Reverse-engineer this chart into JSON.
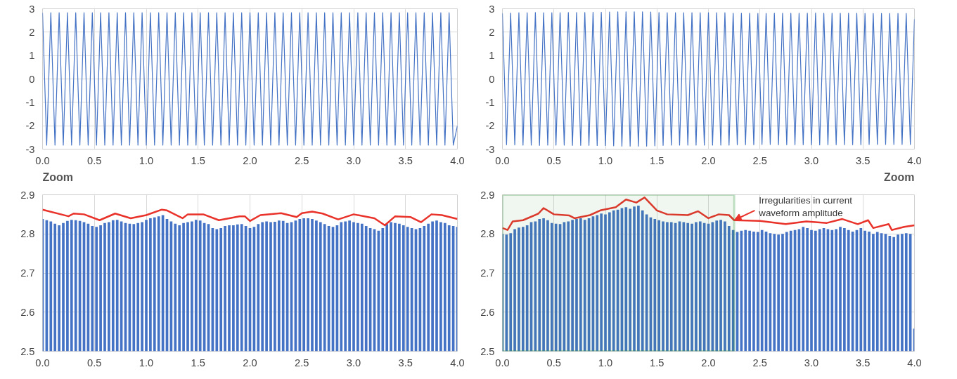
{
  "chart_data": [
    {
      "type": "line",
      "x": [
        0,
        0.04,
        0.08,
        0.12,
        0.16,
        0.2,
        0.24,
        0.28,
        0.32,
        0.36,
        0.4,
        0.44,
        0.48,
        0.52,
        0.56,
        0.6,
        0.64,
        0.68,
        0.72,
        0.76,
        0.8,
        0.84,
        0.88,
        0.92,
        0.96,
        1.0,
        1.04,
        1.08,
        1.12,
        1.16,
        1.2,
        1.24,
        1.28,
        1.32,
        1.36,
        1.4,
        1.44,
        1.48,
        1.52,
        1.56,
        1.6,
        1.64,
        1.68,
        1.72,
        1.76,
        1.8,
        1.84,
        1.88,
        1.92,
        1.96,
        2.0,
        2.04,
        2.08,
        2.12,
        2.16,
        2.2,
        2.24,
        2.28,
        2.32,
        2.36,
        2.4,
        2.44,
        2.48,
        2.52,
        2.56,
        2.6,
        2.64,
        2.68,
        2.72,
        2.76,
        2.8,
        2.84,
        2.88,
        2.92,
        2.96,
        3.0,
        3.04,
        3.08,
        3.12,
        3.16,
        3.2,
        3.24,
        3.28,
        3.32,
        3.36,
        3.4,
        3.44,
        3.48,
        3.52,
        3.56,
        3.6,
        3.64,
        3.68,
        3.72,
        3.76,
        3.8,
        3.84,
        3.88,
        3.92,
        3.96,
        4.0
      ],
      "series": [
        {
          "color": "#4472c4",
          "values": [
            2.83,
            -2.83,
            2.83,
            -2.83,
            2.83,
            -2.83,
            2.83,
            -2.83,
            2.83,
            -2.83,
            2.83,
            -2.83,
            2.83,
            -2.83,
            2.83,
            -2.83,
            2.83,
            -2.83,
            2.83,
            -2.83,
            2.83,
            -2.83,
            2.83,
            -2.83,
            2.83,
            -2.83,
            2.83,
            -2.83,
            2.83,
            -2.83,
            2.83,
            -2.83,
            2.83,
            -2.83,
            2.83,
            -2.83,
            2.83,
            -2.83,
            2.83,
            -2.83,
            2.83,
            -2.83,
            2.83,
            -2.83,
            2.83,
            -2.83,
            2.83,
            -2.83,
            2.83,
            -2.83,
            2.83,
            -2.83,
            2.83,
            -2.83,
            2.83,
            -2.83,
            2.83,
            -2.83,
            2.83,
            -2.83,
            2.83,
            -2.83,
            2.83,
            -2.83,
            2.83,
            -2.83,
            2.83,
            -2.83,
            2.83,
            -2.83,
            2.83,
            -2.83,
            2.83,
            -2.83,
            2.83,
            -2.83,
            2.83,
            -2.83,
            2.83,
            -2.83,
            2.83,
            -2.83,
            2.83,
            -2.83,
            2.83,
            -2.83,
            2.83,
            -2.83,
            2.83,
            -2.83,
            2.83,
            -2.83,
            2.83,
            -2.83,
            2.83,
            -2.83,
            2.83,
            -2.83,
            2.83,
            -2.83,
            -2.0
          ]
        }
      ],
      "xlim": [
        0,
        4
      ],
      "ylim": [
        -3,
        3
      ],
      "xticks": [
        {
          "value": 0,
          "label": "0.0"
        },
        0.5,
        {
          "value": 1,
          "label": "1.0"
        },
        1.5,
        {
          "value": 2,
          "label": "2.0"
        },
        2.5,
        {
          "value": 3,
          "label": "3.0"
        },
        3.5,
        {
          "value": 4,
          "label": "4.0"
        }
      ],
      "yticks": [
        -3,
        -2,
        -1,
        0,
        1,
        2,
        3
      ],
      "grid": true,
      "annotations": [
        "Zoom"
      ]
    },
    {
      "type": "line",
      "x": [
        0,
        0.04,
        0.08,
        0.12,
        0.16,
        0.2,
        0.24,
        0.28,
        0.32,
        0.36,
        0.4,
        0.44,
        0.48,
        0.52,
        0.56,
        0.6,
        0.64,
        0.68,
        0.72,
        0.76,
        0.8,
        0.84,
        0.88,
        0.92,
        0.96,
        1.0,
        1.04,
        1.08,
        1.12,
        1.16,
        1.2,
        1.24,
        1.28,
        1.32,
        1.36,
        1.4,
        1.44,
        1.48,
        1.52,
        1.56,
        1.6,
        1.64,
        1.68,
        1.72,
        1.76,
        1.8,
        1.84,
        1.88,
        1.92,
        1.96,
        2.0,
        2.04,
        2.08,
        2.12,
        2.16,
        2.2,
        2.24,
        2.28,
        2.32,
        2.36,
        2.4,
        2.44,
        2.48,
        2.52,
        2.56,
        2.6,
        2.64,
        2.68,
        2.72,
        2.76,
        2.8,
        2.84,
        2.88,
        2.92,
        2.96,
        3.0,
        3.04,
        3.08,
        3.12,
        3.16,
        3.2,
        3.24,
        3.28,
        3.32,
        3.36,
        3.4,
        3.44,
        3.48,
        3.52,
        3.56,
        3.6,
        3.64,
        3.68,
        3.72,
        3.76,
        3.8,
        3.84,
        3.88,
        3.92,
        3.96,
        4.0
      ],
      "series": [
        {
          "color": "#4472c4",
          "values": [
            2.81,
            -2.81,
            2.82,
            -2.82,
            2.83,
            -2.83,
            2.83,
            -2.83,
            2.84,
            -2.84,
            2.83,
            -2.83,
            2.83,
            -2.83,
            2.83,
            -2.83,
            2.84,
            -2.84,
            2.84,
            -2.84,
            2.84,
            -2.84,
            2.85,
            -2.85,
            2.85,
            -2.85,
            2.86,
            -2.86,
            2.87,
            -2.87,
            2.87,
            -2.87,
            2.87,
            -2.87,
            2.87,
            -2.87,
            2.86,
            -2.86,
            2.84,
            -2.84,
            2.83,
            -2.83,
            2.83,
            -2.83,
            2.83,
            -2.83,
            2.83,
            -2.83,
            2.83,
            -2.83,
            2.83,
            -2.83,
            2.83,
            -2.83,
            2.83,
            -2.83,
            2.81,
            -2.81,
            2.81,
            -2.81,
            2.81,
            -2.81,
            2.8,
            -2.8,
            2.8,
            -2.8,
            2.81,
            -2.81,
            2.81,
            -2.81,
            2.81,
            -2.81,
            2.81,
            -2.81,
            2.81,
            -2.81,
            2.82,
            -2.82,
            2.81,
            -2.81,
            2.81,
            -2.81,
            2.81,
            -2.81,
            2.81,
            -2.81,
            2.81,
            -2.81,
            2.8,
            -2.8,
            2.8,
            -2.8,
            2.8,
            -2.8,
            2.8,
            -2.8,
            2.8,
            -2.8,
            2.8,
            -2.8,
            2.56
          ]
        }
      ],
      "xlim": [
        0,
        4
      ],
      "ylim": [
        -3,
        3
      ],
      "xticks": [
        {
          "value": 0,
          "label": "0.0"
        },
        0.5,
        {
          "value": 1,
          "label": "1.0"
        },
        1.5,
        {
          "value": 2,
          "label": "2.0"
        },
        2.5,
        {
          "value": 3,
          "label": "3.0"
        },
        3.5,
        {
          "value": 4,
          "label": "4.0"
        }
      ],
      "yticks": [
        -3,
        -2,
        -1,
        0,
        1,
        2,
        3
      ],
      "grid": true,
      "annotations": [
        "Zoom"
      ]
    },
    {
      "type": "bar",
      "x": [
        0,
        0.04,
        0.08,
        0.12,
        0.16,
        0.2,
        0.24,
        0.28,
        0.32,
        0.36,
        0.4,
        0.44,
        0.48,
        0.52,
        0.56,
        0.6,
        0.64,
        0.68,
        0.72,
        0.76,
        0.8,
        0.84,
        0.88,
        0.92,
        0.96,
        1.0,
        1.04,
        1.08,
        1.12,
        1.16,
        1.2,
        1.24,
        1.28,
        1.32,
        1.36,
        1.4,
        1.44,
        1.48,
        1.52,
        1.56,
        1.6,
        1.64,
        1.68,
        1.72,
        1.76,
        1.8,
        1.84,
        1.88,
        1.92,
        1.96,
        2.0,
        2.04,
        2.08,
        2.12,
        2.16,
        2.2,
        2.24,
        2.28,
        2.32,
        2.36,
        2.4,
        2.44,
        2.48,
        2.52,
        2.56,
        2.6,
        2.64,
        2.68,
        2.72,
        2.76,
        2.8,
        2.84,
        2.88,
        2.92,
        2.96,
        3.0,
        3.04,
        3.08,
        3.12,
        3.16,
        3.2,
        3.24,
        3.28,
        3.32,
        3.36,
        3.4,
        3.44,
        3.48,
        3.52,
        3.56,
        3.6,
        3.64,
        3.68,
        3.72,
        3.76,
        3.8,
        3.84,
        3.88,
        3.92,
        3.96,
        4.0
      ],
      "series": [
        {
          "color": "#4472c4",
          "values": [
            2.838,
            2.835,
            2.832,
            2.826,
            2.822,
            2.828,
            2.833,
            2.836,
            2.835,
            2.833,
            2.83,
            2.826,
            2.82,
            2.818,
            2.822,
            2.828,
            2.83,
            2.835,
            2.836,
            2.832,
            2.828,
            2.826,
            2.825,
            2.828,
            2.83,
            2.836,
            2.84,
            2.842,
            2.845,
            2.848,
            2.838,
            2.832,
            2.826,
            2.822,
            2.828,
            2.83,
            2.832,
            2.836,
            2.834,
            2.828,
            2.825,
            2.815,
            2.812,
            2.815,
            2.82,
            2.822,
            2.822,
            2.824,
            2.825,
            2.82,
            2.815,
            2.818,
            2.825,
            2.83,
            2.832,
            2.83,
            2.831,
            2.834,
            2.833,
            2.828,
            2.83,
            2.834,
            2.838,
            2.84,
            2.84,
            2.838,
            2.834,
            2.83,
            2.825,
            2.82,
            2.818,
            2.822,
            2.83,
            2.832,
            2.834,
            2.83,
            2.828,
            2.826,
            2.82,
            2.815,
            2.812,
            2.808,
            2.815,
            2.825,
            2.83,
            2.828,
            2.826,
            2.822,
            2.818,
            2.815,
            2.812,
            2.815,
            2.82,
            2.826,
            2.832,
            2.834,
            2.83,
            2.828,
            2.822,
            2.82,
            2.818
          ]
        },
        {
          "type": "line",
          "color": "#e8322a",
          "x": [
            0,
            0.25,
            0.3,
            0.4,
            0.55,
            0.7,
            0.85,
            1.0,
            1.15,
            1.2,
            1.35,
            1.4,
            1.55,
            1.7,
            1.9,
            1.95,
            2.0,
            2.1,
            2.3,
            2.45,
            2.5,
            2.6,
            2.7,
            2.85,
            3.0,
            3.2,
            3.3,
            3.4,
            3.55,
            3.65,
            3.75,
            3.85,
            4.0
          ],
          "values": [
            2.862,
            2.845,
            2.852,
            2.85,
            2.835,
            2.852,
            2.84,
            2.848,
            2.862,
            2.86,
            2.84,
            2.85,
            2.85,
            2.835,
            2.845,
            2.845,
            2.833,
            2.848,
            2.853,
            2.843,
            2.853,
            2.857,
            2.852,
            2.837,
            2.85,
            2.84,
            2.822,
            2.845,
            2.843,
            2.83,
            2.85,
            2.848,
            2.838
          ]
        }
      ],
      "xlim": [
        0,
        4
      ],
      "ylim": [
        2.5,
        2.9
      ],
      "xticks": [
        {
          "value": 0,
          "label": "0.0"
        },
        0.5,
        {
          "value": 1,
          "label": "1.0"
        },
        1.5,
        {
          "value": 2,
          "label": "2.0"
        },
        2.5,
        {
          "value": 3,
          "label": "3.0"
        },
        3.5,
        {
          "value": 4,
          "label": "4.0"
        }
      ],
      "yticks": [
        2.5,
        2.6,
        2.7,
        2.8,
        2.9
      ],
      "grid": true
    },
    {
      "type": "bar",
      "x": [
        0,
        0.04,
        0.08,
        0.12,
        0.16,
        0.2,
        0.24,
        0.28,
        0.32,
        0.36,
        0.4,
        0.44,
        0.48,
        0.52,
        0.56,
        0.6,
        0.64,
        0.68,
        0.72,
        0.76,
        0.8,
        0.84,
        0.88,
        0.92,
        0.96,
        1.0,
        1.04,
        1.08,
        1.12,
        1.16,
        1.2,
        1.24,
        1.28,
        1.32,
        1.36,
        1.4,
        1.44,
        1.48,
        1.52,
        1.56,
        1.6,
        1.64,
        1.68,
        1.72,
        1.76,
        1.8,
        1.84,
        1.88,
        1.92,
        1.96,
        2.0,
        2.04,
        2.08,
        2.12,
        2.16,
        2.2,
        2.24,
        2.28,
        2.32,
        2.36,
        2.4,
        2.44,
        2.48,
        2.52,
        2.56,
        2.6,
        2.64,
        2.68,
        2.72,
        2.76,
        2.8,
        2.84,
        2.88,
        2.92,
        2.96,
        3.0,
        3.04,
        3.08,
        3.12,
        3.16,
        3.2,
        3.24,
        3.28,
        3.32,
        3.36,
        3.4,
        3.44,
        3.48,
        3.52,
        3.56,
        3.6,
        3.64,
        3.68,
        3.72,
        3.76,
        3.8,
        3.84,
        3.88,
        3.92,
        3.96,
        4.0
      ],
      "series": [
        {
          "color": "#4472c4",
          "values": [
            2.8,
            2.798,
            2.802,
            2.812,
            2.816,
            2.818,
            2.822,
            2.83,
            2.832,
            2.838,
            2.84,
            2.835,
            2.828,
            2.826,
            2.825,
            2.83,
            2.832,
            2.836,
            2.838,
            2.84,
            2.836,
            2.84,
            2.845,
            2.848,
            2.852,
            2.85,
            2.855,
            2.86,
            2.862,
            2.866,
            2.868,
            2.864,
            2.87,
            2.872,
            2.86,
            2.85,
            2.842,
            2.838,
            2.835,
            2.832,
            2.83,
            2.83,
            2.828,
            2.832,
            2.83,
            2.828,
            2.826,
            2.83,
            2.832,
            2.828,
            2.826,
            2.83,
            2.834,
            2.836,
            2.832,
            2.82,
            2.81,
            2.805,
            2.808,
            2.81,
            2.808,
            2.806,
            2.805,
            2.81,
            2.806,
            2.802,
            2.8,
            2.798,
            2.8,
            2.805,
            2.808,
            2.81,
            2.812,
            2.818,
            2.815,
            2.81,
            2.808,
            2.812,
            2.815,
            2.812,
            2.81,
            2.812,
            2.818,
            2.815,
            2.81,
            2.806,
            2.81,
            2.815,
            2.808,
            2.806,
            2.8,
            2.805,
            2.802,
            2.8,
            2.795,
            2.792,
            2.798,
            2.8,
            2.802,
            2.8,
            2.558
          ]
        },
        {
          "type": "line",
          "color": "#e8322a",
          "x": [
            0,
            0.05,
            0.1,
            0.2,
            0.35,
            0.4,
            0.5,
            0.65,
            0.7,
            0.85,
            0.95,
            1.1,
            1.2,
            1.3,
            1.38,
            1.5,
            1.6,
            1.8,
            1.9,
            2.0,
            2.1,
            2.2,
            2.25,
            2.5,
            2.75,
            2.95,
            3.15,
            3.3,
            3.45,
            3.55,
            3.6,
            3.75,
            3.78,
            3.9,
            4.0
          ],
          "values": [
            2.815,
            2.81,
            2.832,
            2.835,
            2.852,
            2.866,
            2.85,
            2.847,
            2.84,
            2.848,
            2.86,
            2.868,
            2.888,
            2.88,
            2.893,
            2.86,
            2.85,
            2.848,
            2.858,
            2.84,
            2.85,
            2.848,
            2.835,
            2.833,
            2.825,
            2.832,
            2.828,
            2.838,
            2.825,
            2.835,
            2.815,
            2.825,
            2.81,
            2.818,
            2.822
          ]
        }
      ],
      "xlim": [
        0,
        4
      ],
      "ylim": [
        2.5,
        2.9
      ],
      "xticks": [
        {
          "value": 0,
          "label": "0.0"
        },
        0.5,
        {
          "value": 1,
          "label": "1.0"
        },
        1.5,
        {
          "value": 2,
          "label": "2.0"
        },
        2.5,
        {
          "value": 3,
          "label": "3.0"
        },
        3.5,
        {
          "value": 4,
          "label": "4.0"
        }
      ],
      "yticks": [
        2.5,
        2.6,
        2.7,
        2.8,
        2.9
      ],
      "grid": true,
      "bands": [
        {
          "axis": "x",
          "from": 0,
          "to": 2.25,
          "color": "#3a9a45"
        }
      ],
      "annotations": [
        {
          "text": "Irregularities in current waveform amplitude",
          "x": 2.25,
          "y": 2.835
        }
      ]
    }
  ]
}
